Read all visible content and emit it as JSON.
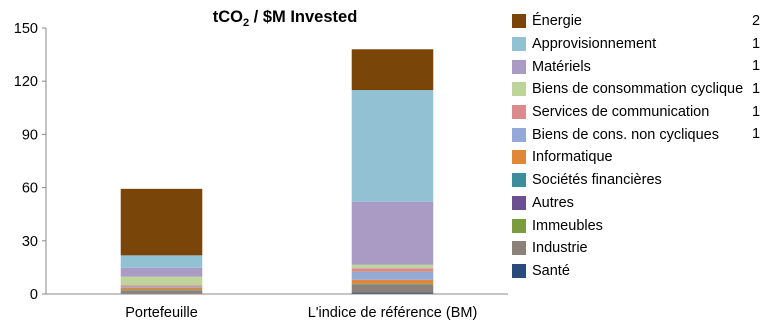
{
  "chart_data": {
    "type": "bar",
    "stacked": true,
    "title_main": "tCO",
    "title_sub": "2",
    "title_rest": " / $M Invested",
    "categories": [
      "Portefeuille",
      "L'indice de référence (BM)"
    ],
    "ylim": [
      0,
      150
    ],
    "yticks": [
      "0",
      "30",
      "60",
      "90",
      "120",
      "150"
    ],
    "series": [
      {
        "name": "Santé",
        "color": "#2b4a7c",
        "values": [
          0.3,
          0.8
        ]
      },
      {
        "name": "Industrie",
        "color": "#8c8179",
        "values": [
          1.5,
          4.0
        ]
      },
      {
        "name": "Immeubles",
        "color": "#7a9c3c",
        "values": [
          0.3,
          0.4
        ]
      },
      {
        "name": "Autres",
        "color": "#6c4f8e",
        "values": [
          0.2,
          0.3
        ]
      },
      {
        "name": "Sociétés financières",
        "color": "#3b8f9c",
        "values": [
          0.2,
          0.3
        ]
      },
      {
        "name": "Informatique",
        "color": "#e0873a",
        "values": [
          1.0,
          2.2
        ]
      },
      {
        "name": "Biens de cons. non cycliques",
        "color": "#94a9d5",
        "values": [
          0.5,
          4.5
        ]
      },
      {
        "name": "Services de communication",
        "color": "#d98b8e",
        "values": [
          0.8,
          2.0
        ]
      },
      {
        "name": "Biens de consommation cycliques",
        "color": "#bdd49a",
        "values": [
          5.0,
          2.0
        ]
      },
      {
        "name": "Matériels",
        "color": "#a99bc4",
        "values": [
          5.0,
          35.5
        ]
      },
      {
        "name": "Approvisionnement",
        "color": "#92c1d4",
        "values": [
          7.0,
          63.0
        ]
      },
      {
        "name": "Énergie",
        "color": "#7a4508",
        "values": [
          37.5,
          23.0
        ]
      }
    ],
    "legend_order": [
      "Énergie",
      "Approvisionnement",
      "Matériels",
      "Biens de consommation cyclique",
      "Services de communication",
      "Biens de cons. non cycliques",
      "Informatique",
      "Sociétés financières",
      "Autres",
      "Immeubles",
      "Industrie",
      "Santé"
    ],
    "side_labels": [
      "2",
      "1",
      "1",
      "1",
      "1",
      "1"
    ]
  }
}
